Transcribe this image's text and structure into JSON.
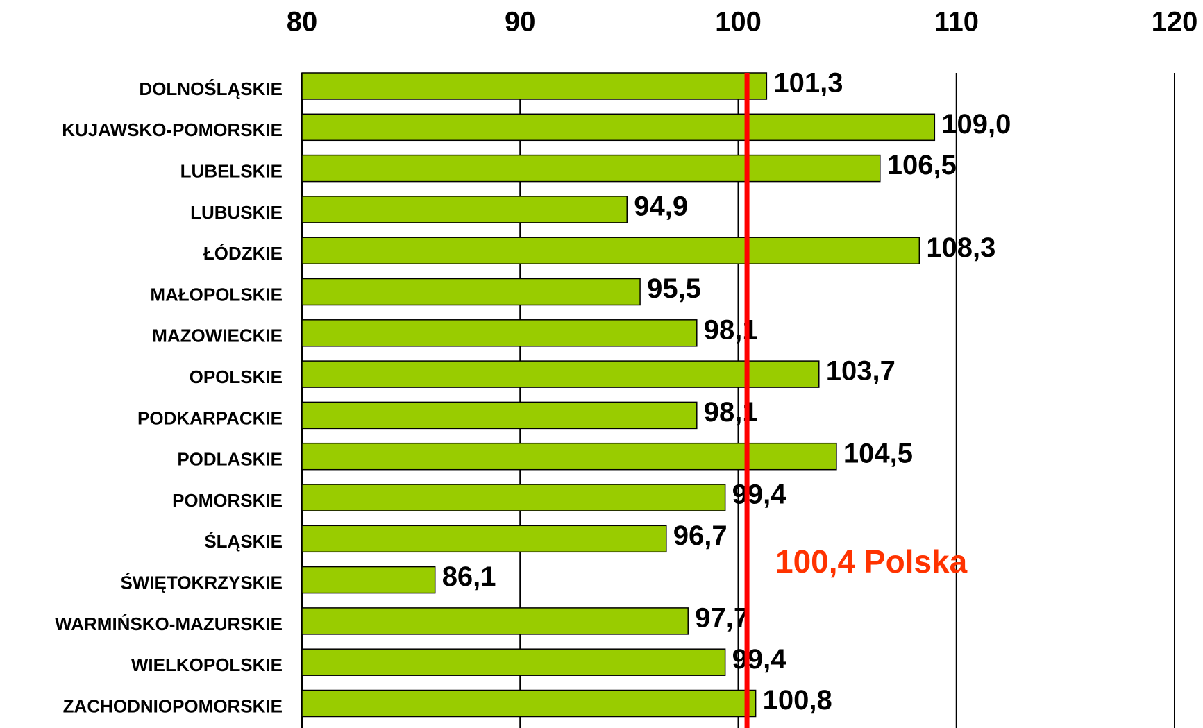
{
  "chart_data": {
    "type": "bar",
    "orientation": "horizontal",
    "categories": [
      "DOLNOŚLĄSKIE",
      "KUJAWSKO-POMORSKIE",
      "LUBELSKIE",
      "LUBUSKIE",
      "ŁÓDZKIE",
      "MAŁOPOLSKIE",
      "MAZOWIECKIE",
      "OPOLSKIE",
      "PODKARPACKIE",
      "PODLASKIE",
      "POMORSKIE",
      "ŚLĄSKIE",
      "ŚWIĘTOKRZYSKIE",
      "WARMIŃSKO-MAZURSKIE",
      "WIELKOPOLSKIE",
      "ZACHODNIOPOMORSKIE"
    ],
    "values": [
      101.3,
      109.0,
      106.5,
      94.9,
      108.3,
      95.5,
      98.1,
      103.7,
      98.1,
      104.5,
      99.4,
      96.7,
      86.1,
      97.7,
      99.4,
      100.8
    ],
    "value_labels": [
      "101,3",
      "109,0",
      "106,5",
      "94,9",
      "108,3",
      "95,5",
      "98,1",
      "103,7",
      "98,1",
      "104,5",
      "99,4",
      "96,7",
      "86,1",
      "97,7",
      "99,4",
      "100,8"
    ],
    "color": "#99cc00",
    "xlim": [
      80,
      120
    ],
    "xticks": [
      80,
      90,
      100,
      110,
      120
    ],
    "grid": true,
    "reference": {
      "value": 100.4,
      "label": "100,4 Polska",
      "color": "#ff0000",
      "label_color": "#ff3300"
    }
  }
}
